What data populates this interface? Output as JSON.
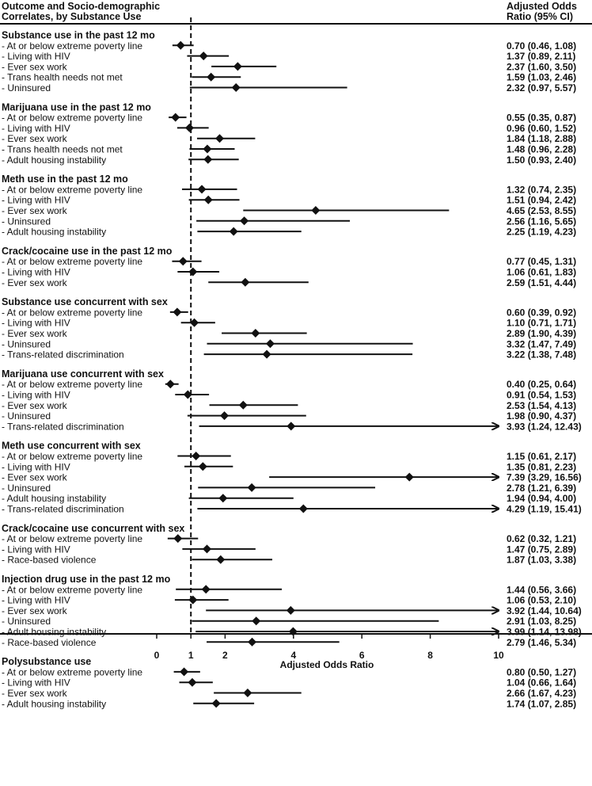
{
  "header": {
    "left_line1": "Outcome and Socio-demographic",
    "left_line2": "Correlates, by Substance Use",
    "right_line1": "Adjusted Odds",
    "right_line2": "Ratio (95% CI)"
  },
  "chart_data": {
    "type": "forest",
    "xlabel": "Adjusted Odds Ratio",
    "xlim": [
      0,
      10
    ],
    "xticks": [
      0,
      1,
      2,
      4,
      6,
      8,
      10
    ],
    "reference_line": 1,
    "groups": [
      {
        "title": "Substance use in the past 12 mo",
        "rows": [
          {
            "label": "- At or below extreme poverty line",
            "or": 0.7,
            "lo": 0.46,
            "hi": 1.08,
            "text": "0.70 (0.46, 1.08)"
          },
          {
            "label": "- Living with HIV",
            "or": 1.37,
            "lo": 0.89,
            "hi": 2.11,
            "text": "1.37 (0.89, 2.11)"
          },
          {
            "label": "- Ever sex work",
            "or": 2.37,
            "lo": 1.6,
            "hi": 3.5,
            "text": "2.37 (1.60, 3.50)"
          },
          {
            "label": "- Trans health needs not met",
            "or": 1.59,
            "lo": 1.03,
            "hi": 2.46,
            "text": "1.59 (1.03, 2.46)"
          },
          {
            "label": "- Uninsured",
            "or": 2.32,
            "lo": 0.97,
            "hi": 5.57,
            "text": "2.32 (0.97, 5.57)"
          }
        ]
      },
      {
        "title": "Marijuana use in the past 12 mo",
        "rows": [
          {
            "label": "- At or below extreme poverty line",
            "or": 0.55,
            "lo": 0.35,
            "hi": 0.87,
            "text": "0.55 (0.35, 0.87)"
          },
          {
            "label": "- Living with HIV",
            "or": 0.96,
            "lo": 0.6,
            "hi": 1.52,
            "text": "0.96 (0.60, 1.52)"
          },
          {
            "label": "- Ever sex work",
            "or": 1.84,
            "lo": 1.18,
            "hi": 2.88,
            "text": "1.84 (1.18, 2.88)"
          },
          {
            "label": "- Trans health needs not met",
            "or": 1.48,
            "lo": 0.96,
            "hi": 2.28,
            "text": "1.48 (0.96, 2.28)"
          },
          {
            "label": "- Adult housing instability",
            "or": 1.5,
            "lo": 0.93,
            "hi": 2.4,
            "text": "1.50 (0.93, 2.40)"
          }
        ]
      },
      {
        "title": "Meth use in the past 12 mo",
        "rows": [
          {
            "label": "- At or below extreme poverty line",
            "or": 1.32,
            "lo": 0.74,
            "hi": 2.35,
            "text": "1.32 (0.74, 2.35)"
          },
          {
            "label": "- Living with HIV",
            "or": 1.51,
            "lo": 0.94,
            "hi": 2.42,
            "text": "1.51 (0.94, 2.42)"
          },
          {
            "label": "- Ever sex work",
            "or": 4.65,
            "lo": 2.53,
            "hi": 8.55,
            "text": "4.65 (2.53, 8.55)"
          },
          {
            "label": "- Uninsured",
            "or": 2.56,
            "lo": 1.16,
            "hi": 5.65,
            "text": "2.56 (1.16, 5.65)"
          },
          {
            "label": "- Adult housing instability",
            "or": 2.25,
            "lo": 1.19,
            "hi": 4.23,
            "text": "2.25 (1.19, 4.23)"
          }
        ]
      },
      {
        "title": "Crack/cocaine use in the past 12 mo",
        "rows": [
          {
            "label": "- At or below extreme poverty line",
            "or": 0.77,
            "lo": 0.45,
            "hi": 1.31,
            "text": "0.77 (0.45, 1.31)"
          },
          {
            "label": "- Living with HIV",
            "or": 1.06,
            "lo": 0.61,
            "hi": 1.83,
            "text": "1.06 (0.61, 1.83)"
          },
          {
            "label": "- Ever sex work",
            "or": 2.59,
            "lo": 1.51,
            "hi": 4.44,
            "text": "2.59 (1.51, 4.44)"
          }
        ]
      },
      {
        "title": "Substance use concurrent with sex",
        "rows": [
          {
            "label": "- At or below extreme poverty line",
            "or": 0.6,
            "lo": 0.39,
            "hi": 0.92,
            "text": "0.60 (0.39, 0.92)"
          },
          {
            "label": "- Living with HIV",
            "or": 1.1,
            "lo": 0.71,
            "hi": 1.71,
            "text": "1.10 (0.71, 1.71)"
          },
          {
            "label": "- Ever sex work",
            "or": 2.89,
            "lo": 1.9,
            "hi": 4.39,
            "text": "2.89 (1.90, 4.39)"
          },
          {
            "label": "- Uninsured",
            "or": 3.32,
            "lo": 1.47,
            "hi": 7.49,
            "text": "3.32 (1.47, 7.49)"
          },
          {
            "label": "- Trans-related discrimination",
            "or": 3.22,
            "lo": 1.38,
            "hi": 7.48,
            "text": "3.22 (1.38, 7.48)"
          }
        ]
      },
      {
        "title": "Marijuana use concurrent with sex",
        "rows": [
          {
            "label": "- At or below extreme poverty line",
            "or": 0.4,
            "lo": 0.25,
            "hi": 0.64,
            "text": "0.40 (0.25, 0.64)"
          },
          {
            "label": "- Living with HIV",
            "or": 0.91,
            "lo": 0.54,
            "hi": 1.53,
            "text": "0.91 (0.54, 1.53)"
          },
          {
            "label": "- Ever sex work",
            "or": 2.53,
            "lo": 1.54,
            "hi": 4.13,
            "text": "2.53 (1.54, 4.13)"
          },
          {
            "label": "- Uninsured",
            "or": 1.98,
            "lo": 0.9,
            "hi": 4.37,
            "text": "1.98 (0.90, 4.37)"
          },
          {
            "label": "- Trans-related discrimination",
            "or": 3.93,
            "lo": 1.24,
            "hi": 12.43,
            "text": "3.93 (1.24, 12.43)"
          }
        ]
      },
      {
        "title": "Meth use concurrent with sex",
        "rows": [
          {
            "label": "- At or below extreme poverty line",
            "or": 1.15,
            "lo": 0.61,
            "hi": 2.17,
            "text": "1.15 (0.61, 2.17)"
          },
          {
            "label": "- Living with HIV",
            "or": 1.35,
            "lo": 0.81,
            "hi": 2.23,
            "text": "1.35 (0.81, 2.23)"
          },
          {
            "label": "- Ever sex work",
            "or": 7.39,
            "lo": 3.29,
            "hi": 16.56,
            "text": "7.39 (3.29, 16.56)"
          },
          {
            "label": "- Uninsured",
            "or": 2.78,
            "lo": 1.21,
            "hi": 6.39,
            "text": "2.78 (1.21, 6.39)"
          },
          {
            "label": "- Adult housing instability",
            "or": 1.94,
            "lo": 0.94,
            "hi": 4.0,
            "text": "1.94 (0.94, 4.00)"
          },
          {
            "label": "- Trans-related discrimination",
            "or": 4.29,
            "lo": 1.19,
            "hi": 15.41,
            "text": "4.29 (1.19, 15.41)"
          }
        ]
      },
      {
        "title": "Crack/cocaine use concurrent with sex",
        "rows": [
          {
            "label": "- At or below extreme poverty line",
            "or": 0.62,
            "lo": 0.32,
            "hi": 1.21,
            "text": "0.62 (0.32, 1.21)"
          },
          {
            "label": "- Living with HIV",
            "or": 1.47,
            "lo": 0.75,
            "hi": 2.89,
            "text": "1.47 (0.75, 2.89)"
          },
          {
            "label": "- Race-based violence",
            "or": 1.87,
            "lo": 1.03,
            "hi": 3.38,
            "text": "1.87 (1.03, 3.38)"
          }
        ]
      },
      {
        "title": "Injection drug use in the past 12 mo",
        "rows": [
          {
            "label": "- At or below extreme poverty line",
            "or": 1.44,
            "lo": 0.56,
            "hi": 3.66,
            "text": "1.44 (0.56, 3.66)"
          },
          {
            "label": "- Living with HIV",
            "or": 1.06,
            "lo": 0.53,
            "hi": 2.1,
            "text": "1.06 (0.53, 2.10)"
          },
          {
            "label": "- Ever sex work",
            "or": 3.92,
            "lo": 1.44,
            "hi": 10.64,
            "text": "3.92 (1.44, 10.64)"
          },
          {
            "label": "- Uninsured",
            "or": 2.91,
            "lo": 1.03,
            "hi": 8.25,
            "text": "2.91 (1.03, 8.25)"
          },
          {
            "label": "- Adult housing instability",
            "or": 3.99,
            "lo": 1.14,
            "hi": 13.98,
            "text": "3.99 (1.14, 13.98)"
          },
          {
            "label": "- Race-based violence",
            "or": 2.79,
            "lo": 1.46,
            "hi": 5.34,
            "text": "2.79 (1.46, 5.34)"
          }
        ]
      },
      {
        "title": "Polysubstance use",
        "rows": [
          {
            "label": "- At or below extreme poverty line",
            "or": 0.8,
            "lo": 0.5,
            "hi": 1.27,
            "text": "0.80 (0.50, 1.27)"
          },
          {
            "label": "- Living with HIV",
            "or": 1.04,
            "lo": 0.66,
            "hi": 1.64,
            "text": "1.04 (0.66, 1.64)"
          },
          {
            "label": "- Ever sex work",
            "or": 2.66,
            "lo": 1.67,
            "hi": 4.23,
            "text": "2.66 (1.67, 4.23)"
          },
          {
            "label": "- Adult housing instability",
            "or": 1.74,
            "lo": 1.07,
            "hi": 2.85,
            "text": "1.74 (1.07, 2.85)"
          }
        ]
      }
    ]
  }
}
